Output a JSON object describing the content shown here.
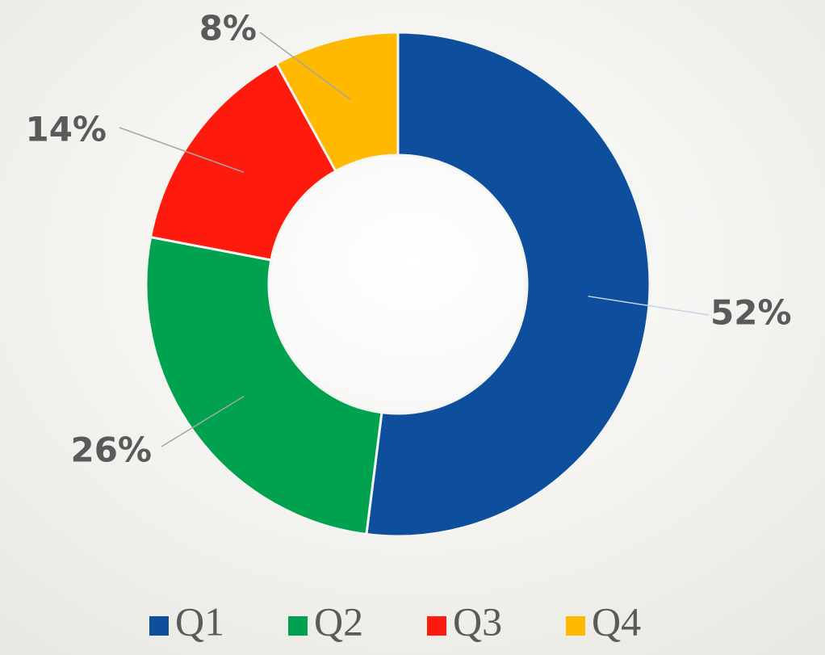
{
  "chart_data": {
    "type": "donut",
    "categories": [
      "Q1",
      "Q2",
      "Q3",
      "Q4"
    ],
    "values": [
      52,
      26,
      14,
      8
    ],
    "value_labels": [
      "52%",
      "26%",
      "14%",
      "8%"
    ],
    "colors": [
      "#0d4f9c",
      "#00a14f",
      "#ff1a0e",
      "#ffb900"
    ],
    "legend": "bottom"
  }
}
